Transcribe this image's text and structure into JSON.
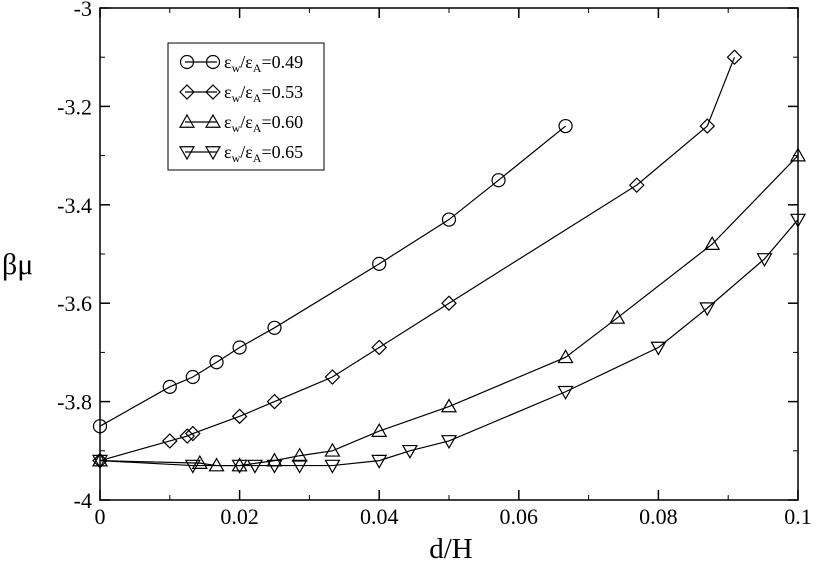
{
  "chart_data": {
    "type": "line",
    "title": "",
    "xlabel": "d/H",
    "ylabel": "βμ",
    "xlim": [
      0,
      0.1
    ],
    "ylim": [
      -4,
      -3
    ],
    "xticks": [
      0,
      0.02,
      0.04,
      0.06,
      0.08,
      0.1
    ],
    "xtick_labels": [
      "0",
      "0.02",
      "0.04",
      "0.06",
      "0.08",
      "0.1"
    ],
    "yticks": [
      -4,
      -3.8,
      -3.6,
      -3.4,
      -3.2,
      -3
    ],
    "ytick_labels": [
      "-4",
      "-3.8",
      "-3.6",
      "-3.4",
      "-3.2",
      "-3"
    ],
    "grid": false,
    "legend_position": "top-left",
    "series": [
      {
        "name": "εw/εA=0.49",
        "label_parts": [
          "ε",
          "w",
          "/ε",
          "A",
          "=0.49"
        ],
        "marker": "circle",
        "x": [
          0,
          0.01,
          0.0133,
          0.0167,
          0.02,
          0.025,
          0.04,
          0.05,
          0.0571,
          0.0667
        ],
        "y": [
          -3.85,
          -3.77,
          -3.75,
          -3.72,
          -3.69,
          -3.65,
          -3.52,
          -3.43,
          -3.35,
          -3.24
        ]
      },
      {
        "name": "εw/εA=0.53",
        "label_parts": [
          "ε",
          "w",
          "/ε",
          "A",
          "=0.53"
        ],
        "marker": "diamond",
        "x": [
          0,
          0.01,
          0.0125,
          0.0133,
          0.02,
          0.025,
          0.0333,
          0.04,
          0.05,
          0.0769,
          0.087,
          0.0909
        ],
        "y": [
          -3.92,
          -3.88,
          -3.87,
          -3.865,
          -3.83,
          -3.8,
          -3.75,
          -3.69,
          -3.6,
          -3.36,
          -3.24,
          -3.1
        ]
      },
      {
        "name": "εw/εA=0.60",
        "label_parts": [
          "ε",
          "w",
          "/ε",
          "A",
          "=0.60"
        ],
        "marker": "triangle-up",
        "x": [
          0,
          0.0143,
          0.0167,
          0.02,
          0.025,
          0.0286,
          0.0333,
          0.04,
          0.05,
          0.0667,
          0.0741,
          0.0877,
          0.1
        ],
        "y": [
          -3.92,
          -3.925,
          -3.93,
          -3.93,
          -3.92,
          -3.91,
          -3.9,
          -3.86,
          -3.81,
          -3.71,
          -3.63,
          -3.48,
          -3.3
        ]
      },
      {
        "name": "εw/εA=0.65",
        "label_parts": [
          "ε",
          "w",
          "/ε",
          "A",
          "=0.65"
        ],
        "marker": "triangle-down",
        "x": [
          0,
          0.0133,
          0.02,
          0.0222,
          0.025,
          0.0286,
          0.0333,
          0.04,
          0.0444,
          0.05,
          0.0667,
          0.08,
          0.087,
          0.0952,
          0.1
        ],
        "y": [
          -3.92,
          -3.93,
          -3.93,
          -3.93,
          -3.93,
          -3.93,
          -3.93,
          -3.92,
          -3.9,
          -3.88,
          -3.78,
          -3.69,
          -3.61,
          -3.51,
          -3.43
        ]
      }
    ]
  }
}
